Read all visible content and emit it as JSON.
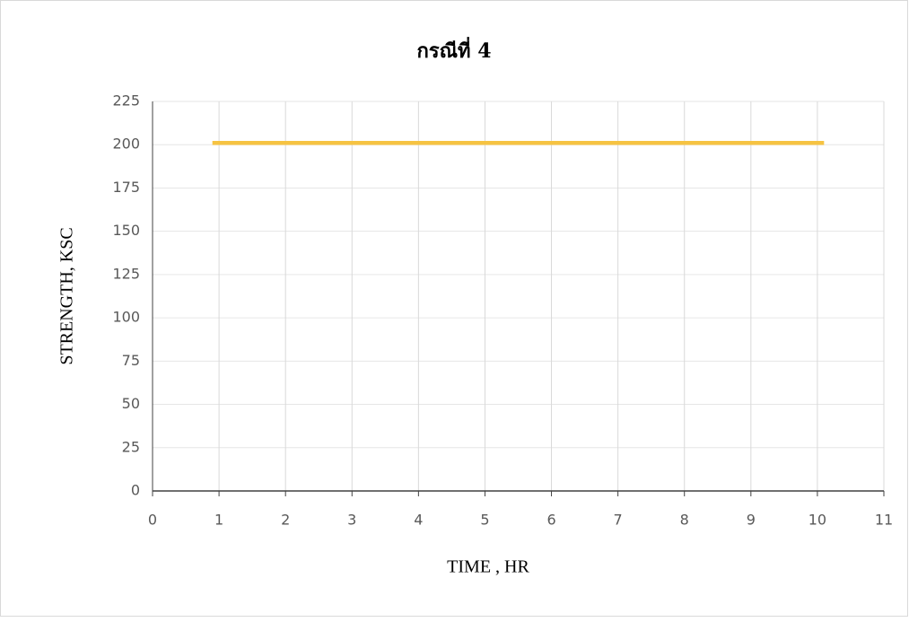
{
  "chart_data": {
    "type": "line",
    "title": "กรณีที่ 4",
    "x_label": "TIME , HR",
    "y_label": "STRENGTH, KSC",
    "series": [
      {
        "name": "กรณีที่ 4",
        "color": "#f6c342",
        "x": [
          0.9,
          10.1
        ],
        "values": [
          201,
          201
        ]
      }
    ],
    "xlim": [
      0,
      11
    ],
    "xticks": [
      0,
      1,
      2,
      3,
      4,
      5,
      6,
      7,
      8,
      9,
      10,
      11
    ],
    "ylim": [
      0,
      225
    ],
    "yticks": [
      0,
      25,
      50,
      75,
      100,
      125,
      150,
      175,
      200,
      225
    ],
    "grid": true
  }
}
